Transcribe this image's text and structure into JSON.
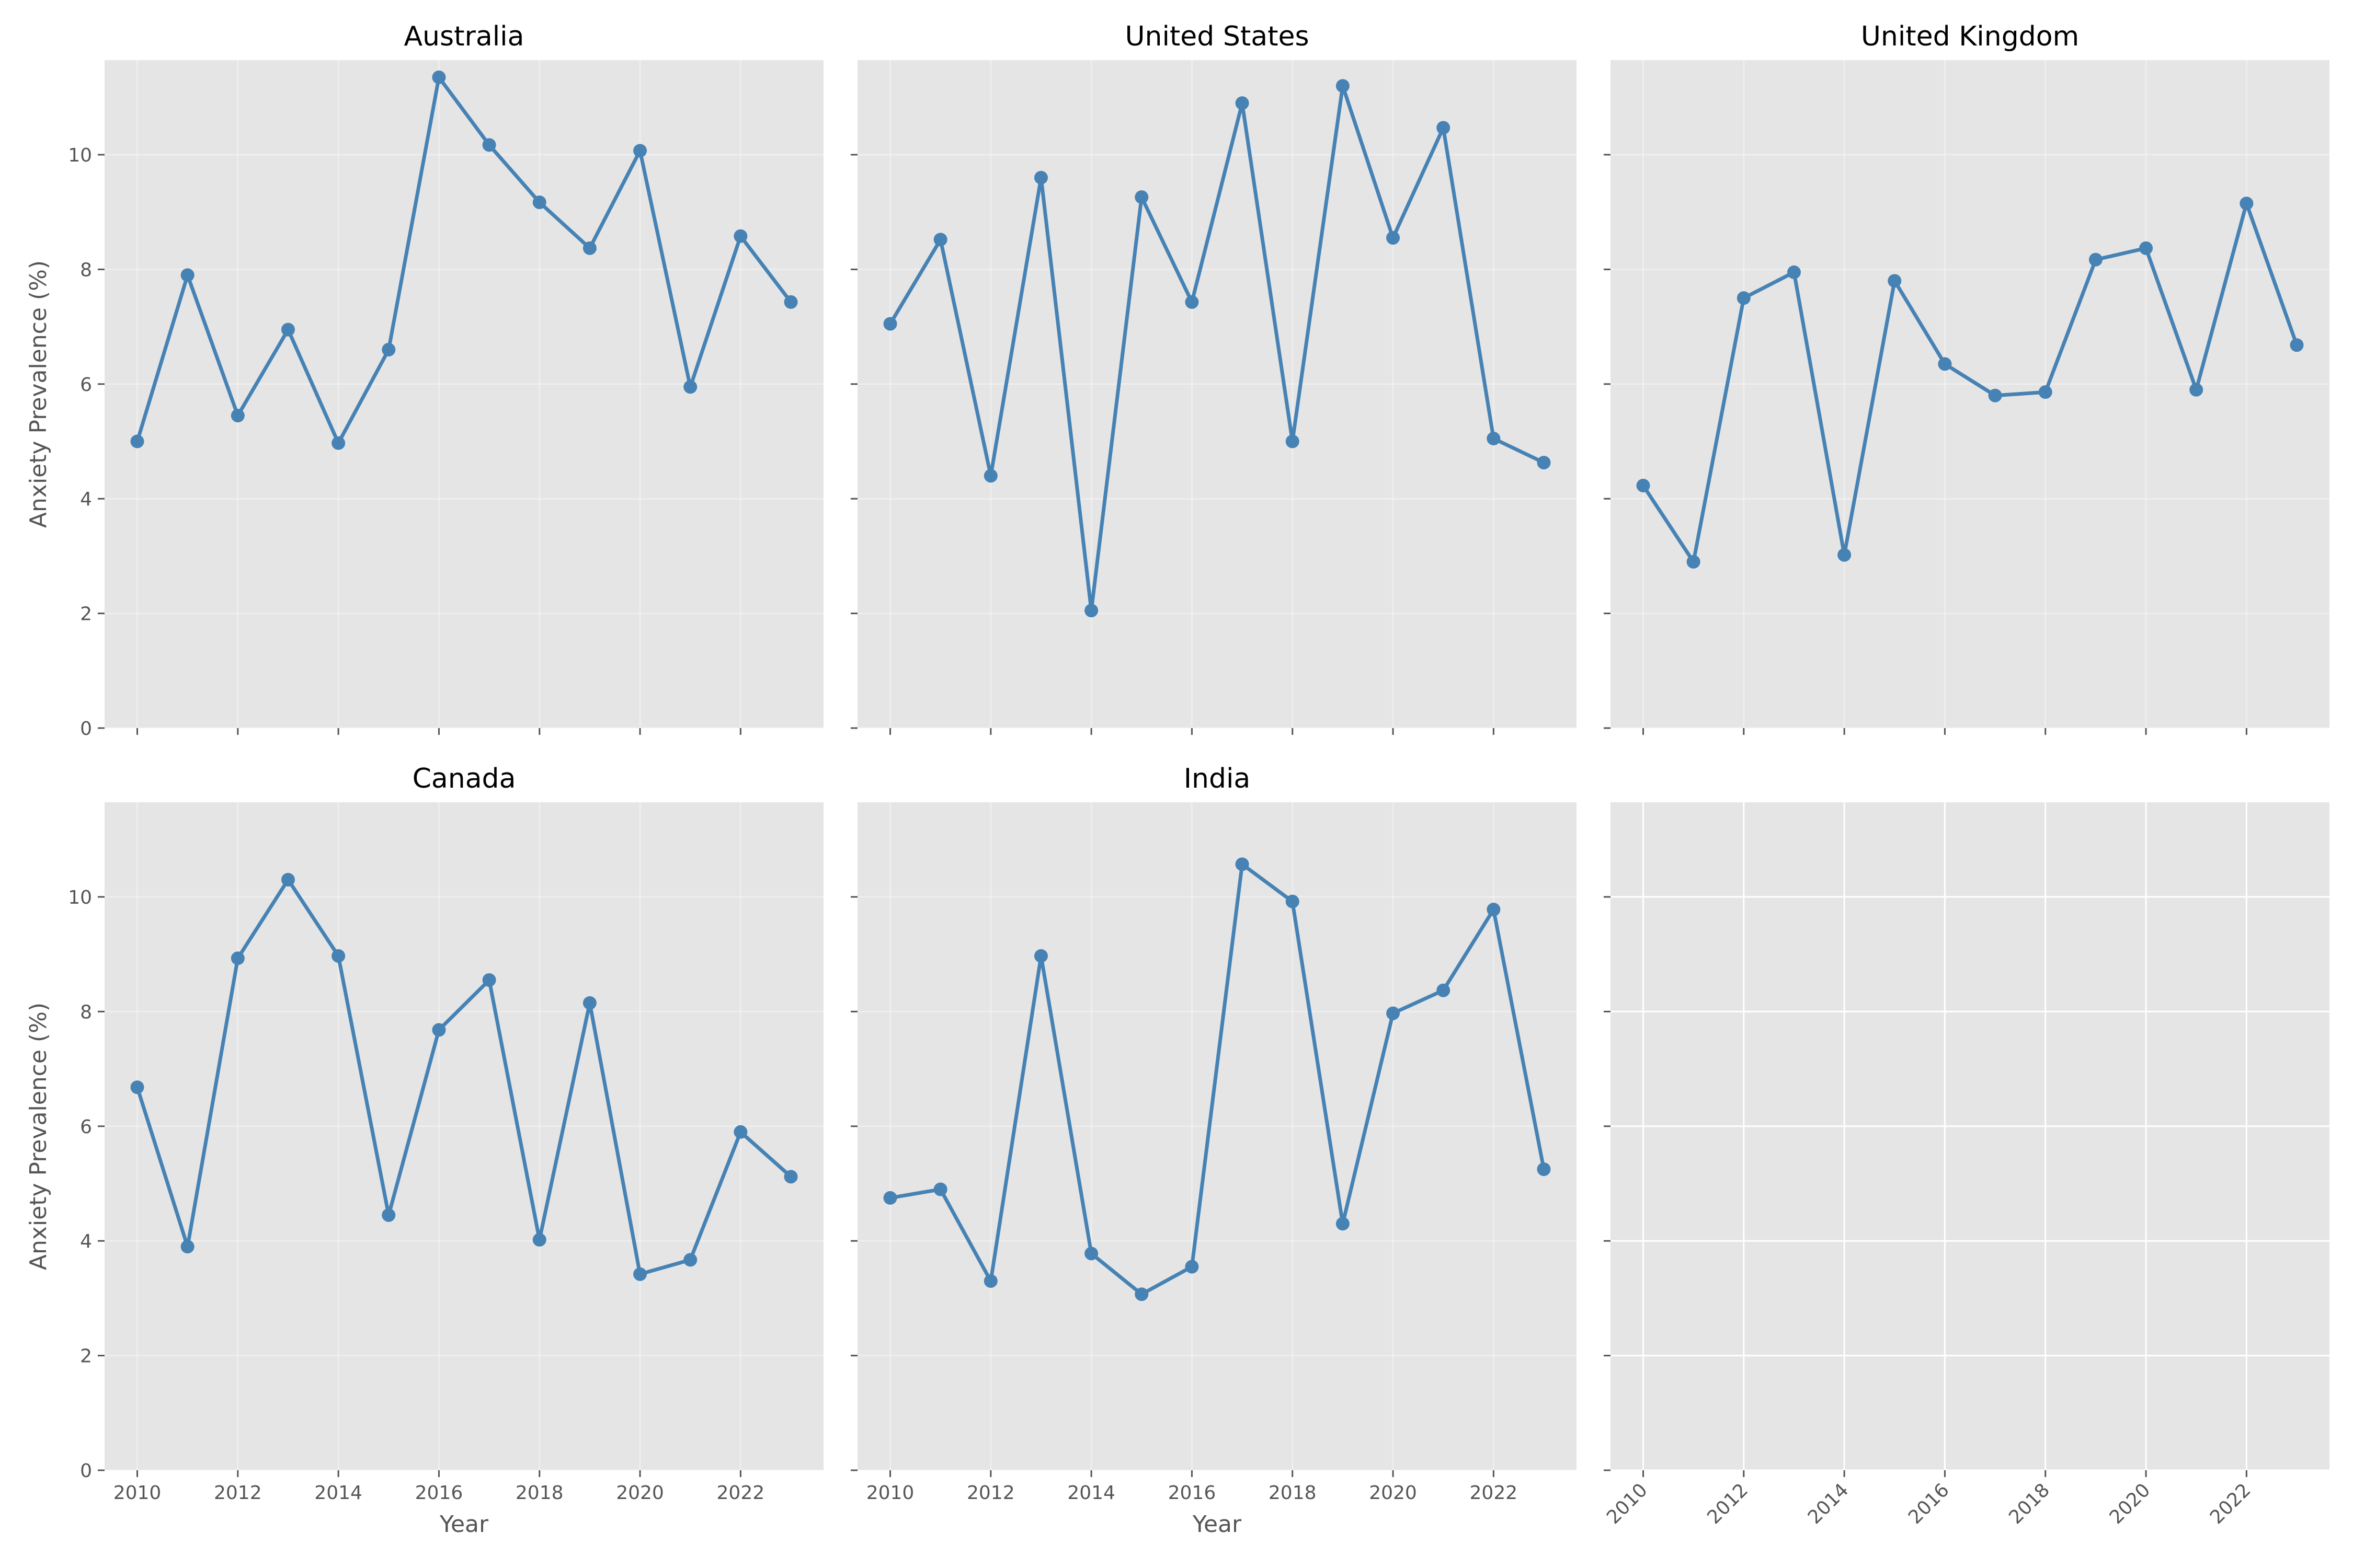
{
  "figure": {
    "ylabel": "Anxiety Prevalence (%)",
    "xlabel": "Year"
  },
  "style": {
    "axes_background": "#E5E5E5",
    "grid_color": "#FFFFFF",
    "line_color": "#4682B4",
    "tick_color": "#555555",
    "title_color": "#000000"
  },
  "x_ticks": [
    "2010",
    "2012",
    "2014",
    "2016",
    "2018",
    "2020",
    "2022"
  ],
  "y_ticks": [
    "0",
    "2",
    "4",
    "6",
    "8",
    "10"
  ],
  "chart_data": [
    {
      "type": "line",
      "title": "Australia",
      "x": [
        2010,
        2011,
        2012,
        2013,
        2014,
        2015,
        2016,
        2017,
        2018,
        2019,
        2020,
        2021,
        2022,
        2023
      ],
      "values": [
        5.0,
        7.9,
        5.45,
        6.95,
        4.97,
        6.6,
        11.35,
        10.17,
        9.17,
        8.37,
        10.07,
        5.95,
        8.58,
        7.43
      ],
      "xlabel": "",
      "ylabel": "Anxiety Prevalence (%)",
      "xlim": [
        2009.35,
        2023.65
      ],
      "ylim": [
        0,
        11.65
      ],
      "grid": true
    },
    {
      "type": "line",
      "title": "United States",
      "x": [
        2010,
        2011,
        2012,
        2013,
        2014,
        2015,
        2016,
        2017,
        2018,
        2019,
        2020,
        2021,
        2022,
        2023
      ],
      "values": [
        7.05,
        8.52,
        4.4,
        9.6,
        2.05,
        9.26,
        7.43,
        10.9,
        5.0,
        11.2,
        8.55,
        10.47,
        5.05,
        4.63
      ],
      "xlabel": "",
      "ylabel": "",
      "xlim": [
        2009.35,
        2023.65
      ],
      "ylim": [
        0,
        11.65
      ],
      "grid": true
    },
    {
      "type": "line",
      "title": "United Kingdom",
      "x": [
        2010,
        2011,
        2012,
        2013,
        2014,
        2015,
        2016,
        2017,
        2018,
        2019,
        2020,
        2021,
        2022,
        2023
      ],
      "values": [
        4.23,
        2.9,
        7.5,
        7.95,
        3.02,
        7.8,
        6.35,
        5.8,
        5.86,
        8.17,
        8.37,
        5.9,
        9.15,
        6.68
      ],
      "xlabel": "",
      "ylabel": "",
      "xlim": [
        2009.35,
        2023.65
      ],
      "ylim": [
        0,
        11.65
      ],
      "grid": true
    },
    {
      "type": "line",
      "title": "Canada",
      "x": [
        2010,
        2011,
        2012,
        2013,
        2014,
        2015,
        2016,
        2017,
        2018,
        2019,
        2020,
        2021,
        2022,
        2023
      ],
      "values": [
        6.68,
        3.9,
        8.93,
        10.3,
        8.97,
        4.45,
        7.68,
        8.55,
        4.02,
        8.15,
        3.42,
        3.67,
        5.9,
        5.12
      ],
      "xlabel": "Year",
      "ylabel": "Anxiety Prevalence (%)",
      "xlim": [
        2009.35,
        2023.65
      ],
      "ylim": [
        0,
        11.65
      ],
      "grid": true
    },
    {
      "type": "line",
      "title": "India",
      "x": [
        2010,
        2011,
        2012,
        2013,
        2014,
        2015,
        2016,
        2017,
        2018,
        2019,
        2020,
        2021,
        2022,
        2023
      ],
      "values": [
        4.75,
        4.9,
        3.3,
        8.97,
        3.78,
        3.07,
        3.55,
        10.57,
        9.92,
        4.3,
        7.97,
        8.37,
        9.78,
        5.25
      ],
      "xlabel": "Year",
      "ylabel": "",
      "xlim": [
        2009.35,
        2023.65
      ],
      "ylim": [
        0,
        11.65
      ],
      "grid": true
    },
    {
      "type": "line",
      "title": "",
      "x": [],
      "values": [],
      "xlabel": "",
      "ylabel": "",
      "xlim": [
        2009.35,
        2023.65
      ],
      "ylim": [
        0,
        11.65
      ],
      "grid": true,
      "empty": true
    }
  ]
}
